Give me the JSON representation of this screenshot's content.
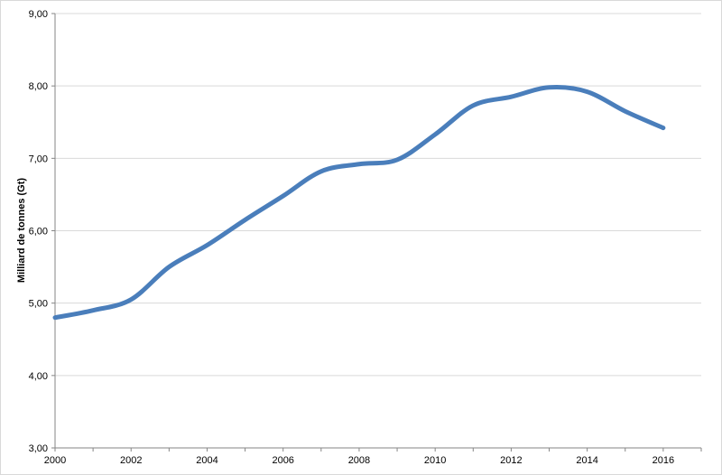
{
  "chart_data": {
    "type": "line",
    "title": "",
    "xlabel": "",
    "ylabel": "Milliard de tonnes (Gt)",
    "x": [
      2000,
      2001,
      2002,
      2003,
      2004,
      2005,
      2006,
      2007,
      2008,
      2009,
      2010,
      2011,
      2012,
      2013,
      2014,
      2015,
      2016
    ],
    "series": [
      {
        "values": [
          4.8,
          4.9,
          5.05,
          5.5,
          5.8,
          6.15,
          6.48,
          6.82,
          6.92,
          6.98,
          7.33,
          7.73,
          7.85,
          7.98,
          7.92,
          7.65,
          7.42
        ],
        "color": "#4a7ebb"
      }
    ],
    "xlim": [
      2000,
      2017
    ],
    "ylim": [
      3,
      9
    ],
    "x_ticks": [
      "2000",
      "2002",
      "2004",
      "2006",
      "2008",
      "2010",
      "2012",
      "2014",
      "2016"
    ],
    "y_ticks": [
      "3,00",
      "4,00",
      "5,00",
      "6,00",
      "7,00",
      "8,00",
      "9,00"
    ],
    "grid": "horizontal",
    "legend": "none"
  }
}
